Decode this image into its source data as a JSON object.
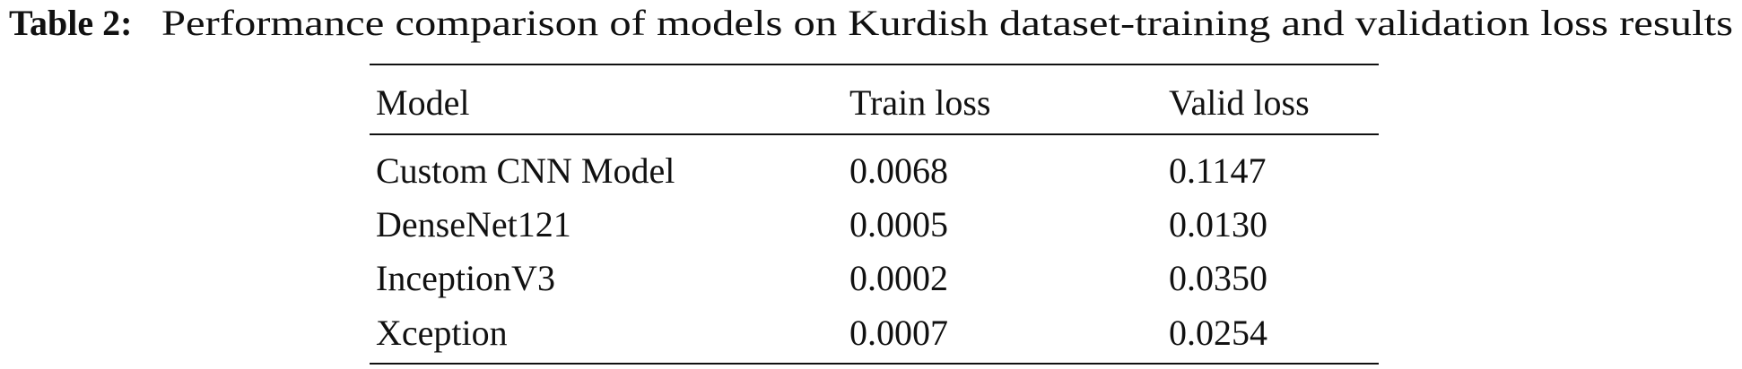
{
  "caption": {
    "label": "Table 2:",
    "text": "Performance comparison of models on Kurdish dataset-training and validation loss results"
  },
  "table": {
    "columns": [
      "Model",
      "Train loss",
      "Valid loss"
    ],
    "rows": [
      [
        "Custom CNN Model",
        "0.0068",
        "0.1147"
      ],
      [
        "DenseNet121",
        "0.0005",
        "0.0130"
      ],
      [
        "InceptionV3",
        "0.0002",
        "0.0350"
      ],
      [
        "Xception",
        "0.0007",
        "0.0254"
      ]
    ]
  }
}
